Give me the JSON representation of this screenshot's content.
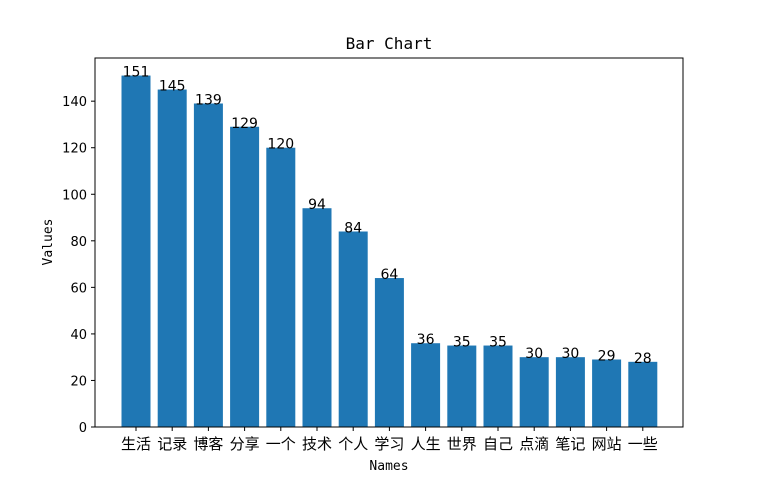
{
  "chart_data": {
    "type": "bar",
    "title": "Bar Chart",
    "xlabel": "Names",
    "ylabel": "Values",
    "categories": [
      "生活",
      "记录",
      "博客",
      "分享",
      "一个",
      "技术",
      "个人",
      "学习",
      "人生",
      "世界",
      "自己",
      "点滴",
      "笔记",
      "网站",
      "一些"
    ],
    "values": [
      151,
      145,
      139,
      129,
      120,
      94,
      84,
      64,
      36,
      35,
      35,
      30,
      30,
      29,
      28
    ],
    "ylim": [
      0,
      158.55
    ],
    "yticks": [
      0,
      20,
      40,
      60,
      80,
      100,
      120,
      140
    ],
    "grid": false,
    "bar_color": "#1f77b4",
    "data_labels": true
  }
}
